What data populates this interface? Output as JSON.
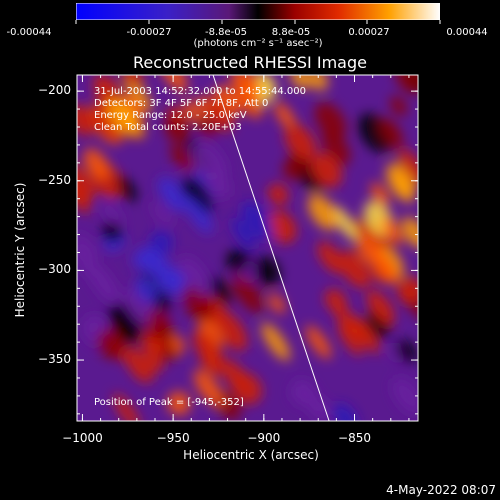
{
  "colorbar": {
    "ticks": [
      "-0.00044",
      "-0.00027",
      "-8.8e-05",
      "8.8e-05",
      "0.00027",
      "0.00044"
    ],
    "units": "(photons cm⁻² s⁻¹ asec⁻²)"
  },
  "annotations": {
    "time": "31-Jul-2003 14:52:32.000 to 14:55:44.000",
    "detectors": "Detectors: 3F 4F 5F 6F 7F 8F, Att 0",
    "energy": "Energy Range: 12.0 - 25.0 keV",
    "clean": "Clean    Total counts: 2.20E+03",
    "peak": "Position of Peak = [-945,-352]"
  },
  "datestamp": "4-May-2022 08:07",
  "chart_data": {
    "type": "heatmap",
    "title": "Reconstructed RHESSI Image",
    "xlabel": "Heliocentric X (arcsec)",
    "ylabel": "Heliocentric Y (arcsec)",
    "xlim": [
      -1003,
      -815
    ],
    "ylim": [
      -384,
      -191
    ],
    "xticks": [
      -1000,
      -950,
      -900,
      -850
    ],
    "xtick_labels": [
      "−1000",
      "−950",
      "−900",
      "−850"
    ],
    "yticks": [
      -200,
      -250,
      -300,
      -350
    ],
    "ytick_labels": [
      "−200",
      "−250",
      "−300",
      "−350"
    ],
    "color_range": [
      -0.00044,
      0.00044
    ],
    "limb_line": [
      [
        -928,
        -191
      ],
      [
        -864,
        -384
      ]
    ]
  }
}
